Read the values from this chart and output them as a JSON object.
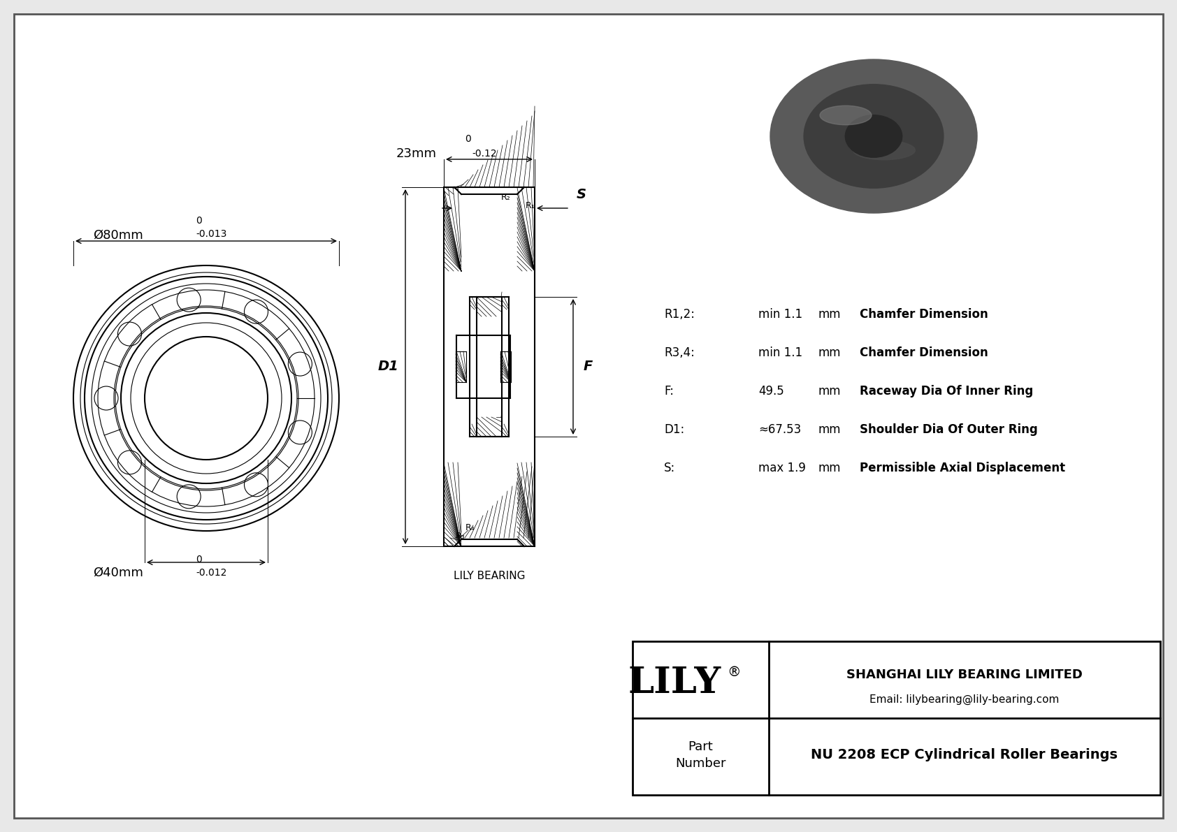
{
  "bg_color": "#e8e8e8",
  "drawing_bg": "#ffffff",
  "line_color": "#000000",
  "title": "NU 2208 ECP Cylindrical Roller Bearings",
  "company": "SHANGHAI LILY BEARING LIMITED",
  "email": "Email: lilybearing@lily-bearing.com",
  "watermark": "LILY BEARING",
  "dim_od_label": "Ø80mm",
  "dim_od_tol_upper": "0",
  "dim_od_tol_lower": "-0.013",
  "dim_id_label": "Ø40mm",
  "dim_id_tol_upper": "0",
  "dim_id_tol_lower": "-0.012",
  "dim_w_label": "23mm",
  "dim_w_tol_upper": "0",
  "dim_w_tol_lower": "-0.12",
  "specs": [
    {
      "param": "R1,2:",
      "value": "min 1.1",
      "unit": "mm",
      "desc": "Chamfer Dimension"
    },
    {
      "param": "R3,4:",
      "value": "min 1.1",
      "unit": "mm",
      "desc": "Chamfer Dimension"
    },
    {
      "param": "F:",
      "value": "49.5",
      "unit": "mm",
      "desc": "Raceway Dia Of Inner Ring"
    },
    {
      "param": "D1:",
      "value": "≈67.53",
      "unit": "mm",
      "desc": "Shoulder Dia Of Outer Ring"
    },
    {
      "param": "S:",
      "value": "max 1.9",
      "unit": "mm",
      "desc": "Permissible Axial Displacement"
    }
  ]
}
